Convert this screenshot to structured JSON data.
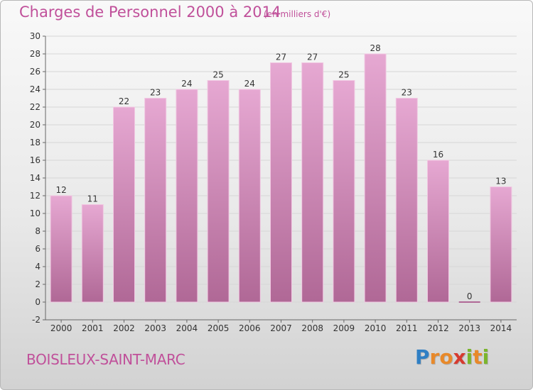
{
  "header": {
    "title": "Charges de Personnel 2000 à 2014",
    "subtitle": "(en milliers d'€)"
  },
  "footer": {
    "commune": "BOISLEUX-SAINT-MARC",
    "logo_letters": [
      "P",
      "r",
      "o",
      "x",
      "i",
      "t",
      "i"
    ],
    "logo_colors": [
      "#2f7fc4",
      "#e8892a",
      "#e8892a",
      "#d63a2f",
      "#7bb52c",
      "#e8892a",
      "#7bb52c"
    ]
  },
  "chart_data": {
    "type": "bar",
    "title": "Charges de Personnel 2000 à 2014",
    "subtitle": "(en milliers d'€)",
    "xlabel": "",
    "ylabel": "",
    "categories": [
      "2000",
      "2001",
      "2002",
      "2003",
      "2004",
      "2005",
      "2006",
      "2007",
      "2008",
      "2009",
      "2010",
      "2011",
      "2012",
      "2013",
      "2014"
    ],
    "values": [
      12,
      11,
      22,
      23,
      24,
      25,
      24,
      27,
      27,
      25,
      28,
      23,
      16,
      0,
      13
    ],
    "ylim": [
      -2,
      30
    ],
    "yticks": [
      -2,
      0,
      2,
      4,
      6,
      8,
      10,
      12,
      14,
      16,
      18,
      20,
      22,
      24,
      26,
      28,
      30
    ],
    "grid": true,
    "bar_color": "#d98fbd"
  }
}
